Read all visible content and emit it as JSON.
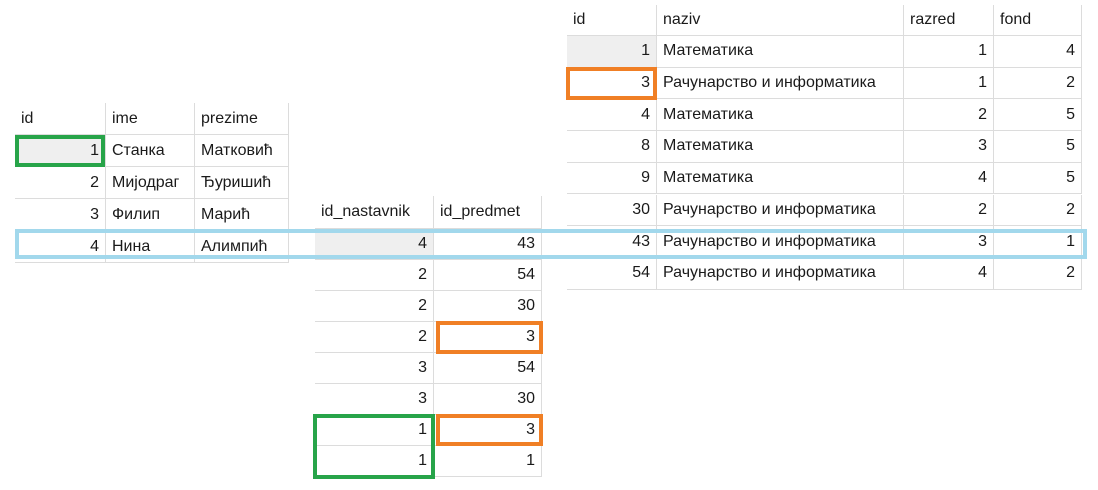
{
  "colors": {
    "green": "#27a449",
    "orange": "#f07f25",
    "blue": "#a2d8ec"
  },
  "nastavnik": {
    "headers": [
      "id",
      "ime",
      "prezime"
    ],
    "rows": [
      [
        "1",
        "Станка",
        "Матковић"
      ],
      [
        "2",
        "Мијодраг",
        "Ђуришић"
      ],
      [
        "3",
        "Филип",
        "Марић"
      ],
      [
        "4",
        "Нина",
        "Алимпић"
      ]
    ]
  },
  "predaje": {
    "headers": [
      "id_nastavnik",
      "id_predmet"
    ],
    "rows": [
      [
        "4",
        "43"
      ],
      [
        "2",
        "54"
      ],
      [
        "2",
        "30"
      ],
      [
        "2",
        "3"
      ],
      [
        "3",
        "54"
      ],
      [
        "3",
        "30"
      ],
      [
        "1",
        "3"
      ],
      [
        "1",
        "1"
      ]
    ]
  },
  "predmet": {
    "headers": [
      "id",
      "naziv",
      "razred",
      "fond"
    ],
    "rows": [
      [
        "1",
        "Математика",
        "1",
        "4"
      ],
      [
        "3",
        "Рачунарство и информатика",
        "1",
        "2"
      ],
      [
        "4",
        "Математика",
        "2",
        "5"
      ],
      [
        "8",
        "Математика",
        "3",
        "5"
      ],
      [
        "9",
        "Математика",
        "4",
        "5"
      ],
      [
        "30",
        "Рачунарство и информатика",
        "2",
        "2"
      ],
      [
        "43",
        "Рачунарство и информатика",
        "3",
        "1"
      ],
      [
        "54",
        "Рачунарство и информатика",
        "4",
        "2"
      ]
    ]
  }
}
